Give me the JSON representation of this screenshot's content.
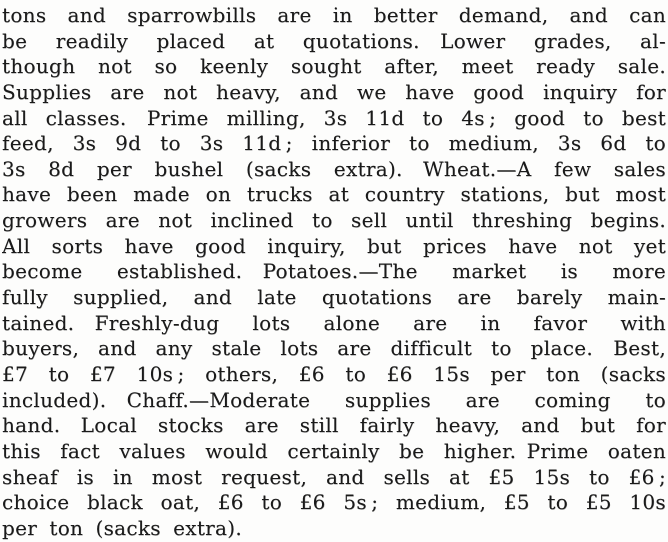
{
  "colors": {
    "paper": "#fdfdfc",
    "ink": "#1a1a1a"
  },
  "article": {
    "lines": [
      "tons and sparrowbills are in better demand, and can",
      "be readily placed at quotations. Lower grades, al-",
      "though not so keenly sought after, meet ready sale.",
      "Supplies are not heavy, and we have good inquiry for",
      "all classes. Prime milling, 3s 11d to 4s ; good to best",
      "feed, 3s 9d to 3s 11d ; inferior to medium, 3s 6d to",
      "3s 8d per bushel (sacks extra). Wheat.—A few sales",
      "have been made on trucks at country stations, but most",
      "growers are not inclined to sell until threshing begins.",
      "All sorts have good inquiry, but prices have not yet",
      "become established. Potatoes.—The market is more",
      "fully supplied, and late quotations are barely main-",
      "tained. Freshly-dug lots alone are in favor with",
      "buyers, and any stale lots are difficult to place. Best,",
      "£7 to £7 10s ; others, £6 to £6 15s per ton (sacks",
      "included). Chaff.—Moderate supplies are coming to",
      "hand. Local stocks are still fairly heavy, and but for",
      "this fact values would certainly be higher. Prime oaten",
      "sheaf is in most request, and sells at £5 15s to £6 ;",
      "choice black oat, £6 to £6 5s ; medium, £5 to £5 10s",
      "per ton (sacks extra)."
    ]
  }
}
